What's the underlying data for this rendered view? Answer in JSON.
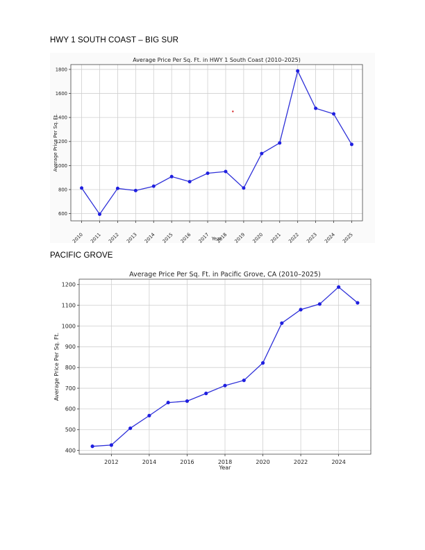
{
  "sections": [
    {
      "heading": "HWY 1 SOUTH COAST – BIG SUR"
    },
    {
      "heading": "PACIFIC GROVE"
    }
  ],
  "chart_data": [
    {
      "type": "line",
      "title": "Average Price Per Sq. Ft. in HWY 1 South Coast (2010–2025)",
      "xlabel": "Year",
      "ylabel": "Average Price Per Sq. Ft.",
      "categories": [
        "2010",
        "2011",
        "2012",
        "2013",
        "2014",
        "2015",
        "2016",
        "2017",
        "2018",
        "2019",
        "2020",
        "2021",
        "2022",
        "2023",
        "2024",
        "2025"
      ],
      "values": [
        813,
        595,
        810,
        792,
        828,
        908,
        866,
        936,
        950,
        813,
        1100,
        1188,
        1787,
        1476,
        1430,
        1176
      ],
      "yticks": [
        600,
        800,
        1000,
        1200,
        1400,
        1600,
        1800
      ],
      "ylim": [
        540,
        1840
      ],
      "grid": true,
      "line_color": "#2d2fd8",
      "annotation_point": {
        "x": 2018.4,
        "y": 1450,
        "color": "#d62728"
      }
    },
    {
      "type": "line",
      "title": "Average Price Per Sq. Ft. in Pacific Grove, CA (2010–2025)",
      "xlabel": "Year",
      "ylabel": "Average Price Per Sq. Ft.",
      "x": [
        2011,
        2012,
        2013,
        2014,
        2015,
        2016,
        2017,
        2018,
        2019,
        2020,
        2021,
        2022,
        2023,
        2024,
        2025
      ],
      "values": [
        420,
        426,
        507,
        568,
        631,
        638,
        675,
        713,
        738,
        822,
        1014,
        1079,
        1106,
        1188,
        1112
      ],
      "xticks": [
        2012,
        2014,
        2016,
        2018,
        2020,
        2022,
        2024
      ],
      "yticks": [
        400,
        500,
        600,
        700,
        800,
        900,
        1000,
        1100,
        1200
      ],
      "xlim": [
        2010.3,
        2025.7
      ],
      "ylim": [
        382,
        1226
      ],
      "grid": true,
      "line_color": "#2d2fd8"
    }
  ]
}
